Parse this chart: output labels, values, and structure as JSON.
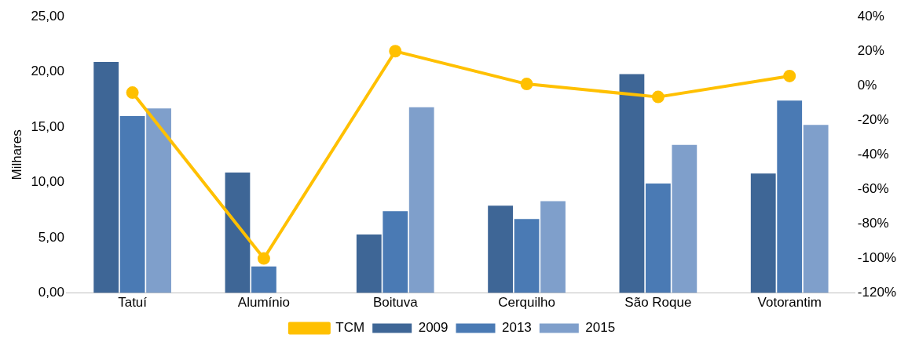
{
  "chart_data": {
    "type": "bar",
    "ylabel": "Milhares",
    "categories": [
      "Tatuí",
      "Alumínio",
      "Boituva",
      "Cerquilho",
      "São Roque",
      "Votorantim"
    ],
    "series": [
      {
        "name": "2009",
        "color": "#3e6696",
        "values": [
          20.9,
          10.9,
          5.3,
          7.9,
          19.8,
          10.8
        ]
      },
      {
        "name": "2013",
        "color": "#4a7ab4",
        "values": [
          16.0,
          2.4,
          7.4,
          6.7,
          9.9,
          17.4
        ]
      },
      {
        "name": "2015",
        "color": "#7f9fcb",
        "values": [
          16.7,
          null,
          16.8,
          8.3,
          13.4,
          15.2
        ]
      },
      {
        "name": "TCM",
        "type": "line",
        "axis": "y2",
        "color": "#ffc000",
        "marker": "circle",
        "values": [
          -4,
          -100,
          20,
          1,
          -6.5,
          5.6
        ]
      }
    ],
    "ylim": [
      0,
      25
    ],
    "yticks": [
      {
        "value": 0,
        "label": "0,00"
      },
      {
        "value": 5,
        "label": "5,00"
      },
      {
        "value": 10,
        "label": "10,00"
      },
      {
        "value": 15,
        "label": "15,00"
      },
      {
        "value": 20,
        "label": "20,00"
      },
      {
        "value": 25,
        "label": "25,00"
      }
    ],
    "y2lim": [
      -120,
      40
    ],
    "y2ticks": [
      {
        "value": -120,
        "label": "-120%"
      },
      {
        "value": -100,
        "label": "-100%"
      },
      {
        "value": -80,
        "label": "-80%"
      },
      {
        "value": -60,
        "label": "-60%"
      },
      {
        "value": -40,
        "label": "-40%"
      },
      {
        "value": -20,
        "label": "-20%"
      },
      {
        "value": 0,
        "label": "0%"
      },
      {
        "value": 20,
        "label": "20%"
      },
      {
        "value": 40,
        "label": "40%"
      }
    ],
    "grid": false,
    "legend": "bottom"
  }
}
